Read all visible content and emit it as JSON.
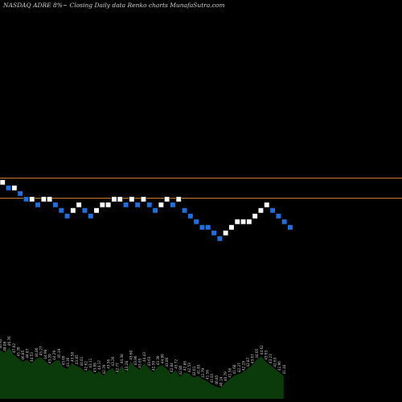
{
  "chart_data": {
    "type": "renko",
    "title": "NASDAQ ADRE 8%~  Closing Daily data  Renko  charts MunafaSutra.com",
    "reference_lines": [
      1.0,
      0.0
    ],
    "colors": {
      "up_brick": "#ffffff",
      "down_brick": "#1e6fe0",
      "reference_line": "#c9782c",
      "volume_fill": "#0b3a0b",
      "volume_label": "#cfcfcf"
    },
    "bricks": [
      {
        "level": 1,
        "dir": "up"
      },
      {
        "level": 0,
        "dir": "down"
      },
      {
        "level": 0,
        "dir": "up"
      },
      {
        "level": -1,
        "dir": "down"
      },
      {
        "level": -2,
        "dir": "down"
      },
      {
        "level": -2,
        "dir": "up"
      },
      {
        "level": -3,
        "dir": "down"
      },
      {
        "level": -2,
        "dir": "up"
      },
      {
        "level": -2,
        "dir": "up"
      },
      {
        "level": -3,
        "dir": "down"
      },
      {
        "level": -4,
        "dir": "down"
      },
      {
        "level": -5,
        "dir": "down"
      },
      {
        "level": -4,
        "dir": "up"
      },
      {
        "level": -3,
        "dir": "up"
      },
      {
        "level": -4,
        "dir": "down"
      },
      {
        "level": -5,
        "dir": "down"
      },
      {
        "level": -4,
        "dir": "up"
      },
      {
        "level": -3,
        "dir": "up"
      },
      {
        "level": -3,
        "dir": "up"
      },
      {
        "level": -2,
        "dir": "up"
      },
      {
        "level": -2,
        "dir": "up"
      },
      {
        "level": -3,
        "dir": "down"
      },
      {
        "level": -2,
        "dir": "up"
      },
      {
        "level": -3,
        "dir": "down"
      },
      {
        "level": -2,
        "dir": "up"
      },
      {
        "level": -3,
        "dir": "down"
      },
      {
        "level": -4,
        "dir": "down"
      },
      {
        "level": -3,
        "dir": "up"
      },
      {
        "level": -2,
        "dir": "up"
      },
      {
        "level": -3,
        "dir": "down"
      },
      {
        "level": -2,
        "dir": "up"
      },
      {
        "level": -4,
        "dir": "down"
      },
      {
        "level": -5,
        "dir": "down"
      },
      {
        "level": -6,
        "dir": "down"
      },
      {
        "level": -7,
        "dir": "down"
      },
      {
        "level": -7,
        "dir": "down"
      },
      {
        "level": -8,
        "dir": "down"
      },
      {
        "level": -9,
        "dir": "down"
      },
      {
        "level": -8,
        "dir": "up"
      },
      {
        "level": -7,
        "dir": "up"
      },
      {
        "level": -6,
        "dir": "up"
      },
      {
        "level": -6,
        "dir": "up"
      },
      {
        "level": -6,
        "dir": "up"
      },
      {
        "level": -5,
        "dir": "up"
      },
      {
        "level": -4,
        "dir": "up"
      },
      {
        "level": -3,
        "dir": "up"
      },
      {
        "level": -4,
        "dir": "down"
      },
      {
        "level": -5,
        "dir": "down"
      },
      {
        "level": -6,
        "dir": "down"
      },
      {
        "level": -7,
        "dir": "down"
      }
    ],
    "volume": [
      {
        "value": 55,
        "label": "46.92"
      },
      {
        "value": 52,
        "label": "48.08"
      },
      {
        "value": 58,
        "label": "46.76"
      },
      {
        "value": 50,
        "label": "47.02"
      },
      {
        "value": 46,
        "label": "45.39"
      },
      {
        "value": 42,
        "label": "46.85"
      },
      {
        "value": 44,
        "label": "44.87"
      },
      {
        "value": 40,
        "label": "44.53"
      },
      {
        "value": 45,
        "label": "44.86"
      },
      {
        "value": 47,
        "label": "45.27"
      },
      {
        "value": 43,
        "label": "44.90"
      },
      {
        "value": 38,
        "label": "43.29"
      },
      {
        "value": 42,
        "label": "44.29"
      },
      {
        "value": 44,
        "label": "45.19"
      },
      {
        "value": 36,
        "label": "43.69"
      },
      {
        "value": 34,
        "label": "43.36"
      },
      {
        "value": 40,
        "label": "43.58"
      },
      {
        "value": 37,
        "label": "43.85"
      },
      {
        "value": 35,
        "label": "44.01"
      },
      {
        "value": 30,
        "label": "42.62"
      },
      {
        "value": 33,
        "label": "43.11"
      },
      {
        "value": 28,
        "label": "43.89"
      },
      {
        "value": 31,
        "label": "43.17"
      },
      {
        "value": 26,
        "label": "42.79"
      },
      {
        "value": 32,
        "label": "43.56"
      },
      {
        "value": 35,
        "label": "43.26"
      },
      {
        "value": 28,
        "label": "42.77"
      },
      {
        "value": 38,
        "label": "44.38"
      },
      {
        "value": 30,
        "label": "43.28"
      },
      {
        "value": 42,
        "label": "43.60"
      },
      {
        "value": 36,
        "label": "43.96"
      },
      {
        "value": 33,
        "label": "43.65"
      },
      {
        "value": 40,
        "label": "44.43"
      },
      {
        "value": 35,
        "label": "43.63"
      },
      {
        "value": 30,
        "label": "42.59"
      },
      {
        "value": 36,
        "label": "43.39"
      },
      {
        "value": 38,
        "label": "44.90"
      },
      {
        "value": 34,
        "label": "43.86"
      },
      {
        "value": 28,
        "label": "42.84"
      },
      {
        "value": 32,
        "label": "43.72"
      },
      {
        "value": 25,
        "label": "42.80"
      },
      {
        "value": 30,
        "label": "42.86"
      },
      {
        "value": 28,
        "label": "42.53"
      },
      {
        "value": 24,
        "label": "42.01"
      },
      {
        "value": 26,
        "label": "41.83"
      },
      {
        "value": 22,
        "label": "41.79"
      },
      {
        "value": 20,
        "label": "41.56"
      },
      {
        "value": 16,
        "label": "41.01"
      },
      {
        "value": 14,
        "label": "40.85"
      },
      {
        "value": 12,
        "label": "40.14"
      },
      {
        "value": 18,
        "label": "40.79"
      },
      {
        "value": 22,
        "label": "41.56"
      },
      {
        "value": 26,
        "label": "41.68"
      },
      {
        "value": 28,
        "label": "42.27"
      },
      {
        "value": 30,
        "label": "42.19"
      },
      {
        "value": 34,
        "label": "42.87"
      },
      {
        "value": 38,
        "label": "43.67"
      },
      {
        "value": 44,
        "label": "44.05"
      },
      {
        "value": 48,
        "label": "44.62"
      },
      {
        "value": 42,
        "label": "43.93"
      },
      {
        "value": 38,
        "label": "43.23"
      },
      {
        "value": 34,
        "label": "42.63"
      },
      {
        "value": 30,
        "label": "41.96"
      },
      {
        "value": 26,
        "label": "41.44"
      }
    ]
  }
}
